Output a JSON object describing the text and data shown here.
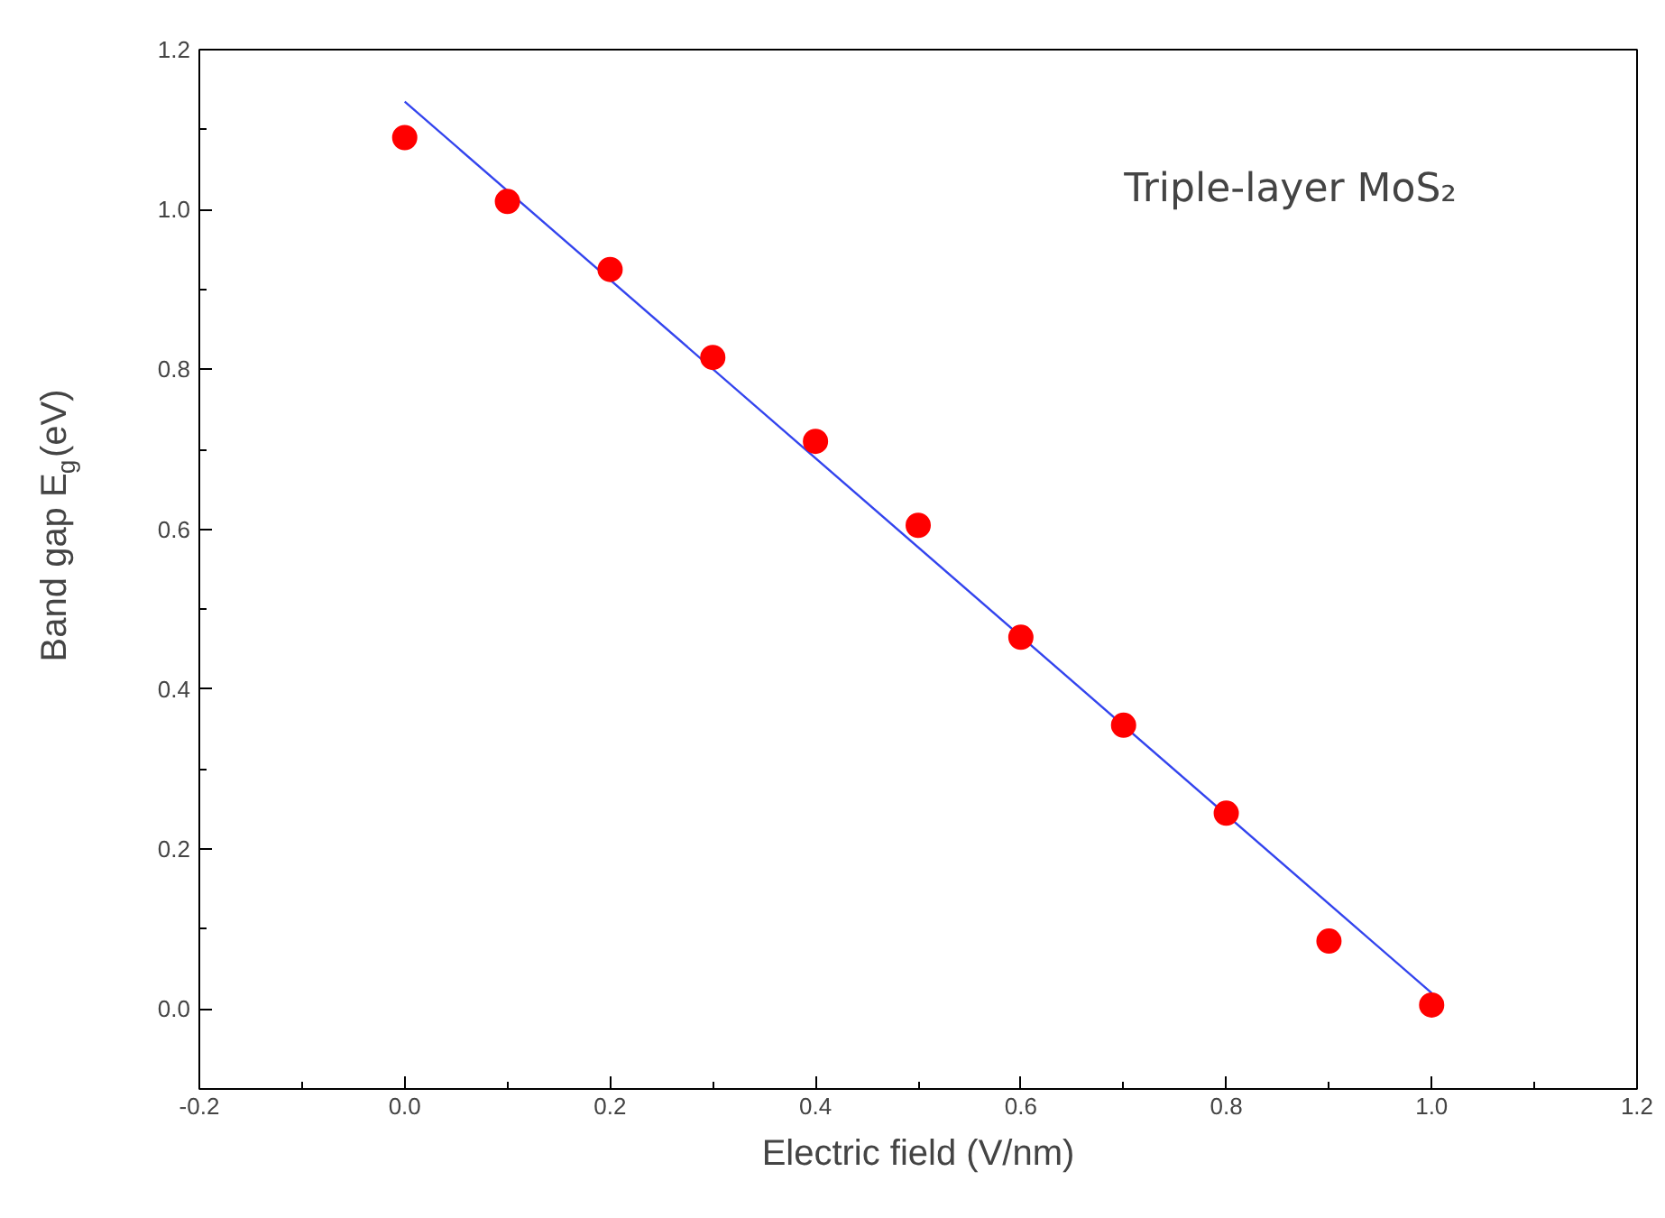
{
  "chart_data": {
    "type": "scatter",
    "xlabel": "Electric field (V/nm)",
    "ylabel": "Band gap E$_{g}$(eV)",
    "annotations": [
      "Triple-layer MoS₂"
    ],
    "xlim": [
      -0.2,
      1.2
    ],
    "ylim": [
      -0.1,
      1.2
    ],
    "xticks": [
      -0.2,
      {
        "value": 0,
        "label": "0.0"
      },
      0.2,
      0.4,
      0.6,
      0.8,
      {
        "value": 1,
        "label": "1.0"
      },
      1.2
    ],
    "yticks": [
      {
        "value": 0,
        "label": "0.0"
      },
      0.2,
      0.4,
      0.6,
      0.8,
      {
        "value": 1,
        "label": "1.0"
      },
      1.2
    ],
    "grid": false,
    "series": [
      {
        "marker": "circle",
        "color": "#ff0000",
        "x": [
          0,
          0.1,
          0.2,
          0.3,
          0.4,
          0.5,
          0.6,
          0.7,
          0.8,
          0.9,
          1.0
        ],
        "values": [
          1.09,
          1.01,
          0.925,
          0.815,
          0.71,
          0.605,
          0.465,
          0.355,
          0.245,
          0.085,
          0.005
        ]
      },
      {
        "type": "line",
        "line_style": "solid",
        "color": "#3344ee",
        "x": [
          0,
          1.0
        ],
        "values": [
          1.135,
          0.02
        ]
      }
    ]
  }
}
